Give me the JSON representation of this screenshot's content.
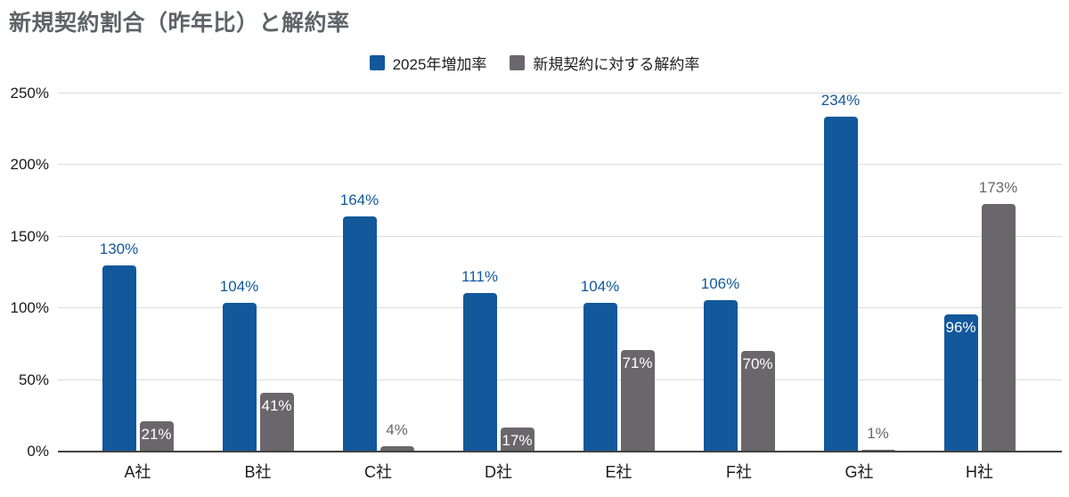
{
  "chart_data": {
    "type": "bar",
    "title": "新規契約割合（昨年比）と解約率",
    "categories": [
      "A社",
      "B社",
      "C社",
      "D社",
      "E社",
      "F社",
      "G社",
      "H社"
    ],
    "series": [
      {
        "name": "2025年増加率",
        "color": "#12589B",
        "values": [
          130,
          104,
          164,
          111,
          104,
          106,
          234,
          96
        ],
        "label_positions": [
          "above",
          "above",
          "above",
          "above",
          "above",
          "above",
          "above",
          "inside"
        ]
      },
      {
        "name": "新規契約に対する解約率",
        "color": "#6A676C",
        "values": [
          21,
          41,
          4,
          17,
          71,
          70,
          1,
          173
        ],
        "label_positions": [
          "inside",
          "inside",
          "above",
          "inside",
          "inside",
          "inside",
          "above",
          "above"
        ]
      }
    ],
    "xlabel": "",
    "ylabel": "",
    "ylim": [
      0,
      250
    ],
    "ytick_step": 50,
    "yticks": [
      "0%",
      "50%",
      "100%",
      "150%",
      "200%",
      "250%"
    ],
    "value_suffix": "%",
    "grid": true,
    "legend_position": "top-center",
    "colors": {
      "grid": "#dcdcdc",
      "baseline": "#424242",
      "title": "#5f6368",
      "tick_label": "#1b1b1b",
      "inside_label": "#ffffff"
    }
  }
}
